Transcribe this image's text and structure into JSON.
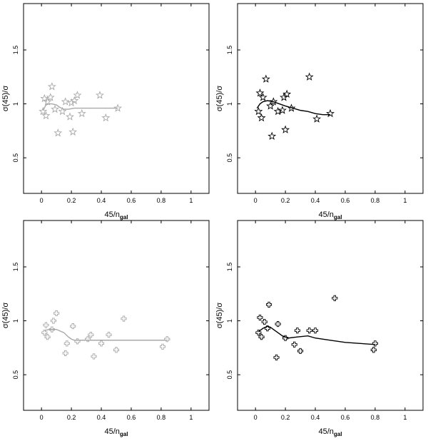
{
  "chart_data": [
    {
      "type": "scatter",
      "panel": "top-left",
      "color": "#a8a8a8",
      "marker": "star",
      "xlabel_main": "45/n",
      "xlabel_sub": "gal",
      "ylabel": "σ(45)/σ",
      "xlim": [
        -0.12,
        1.12
      ],
      "ylim": [
        0.17,
        1.93
      ],
      "xticks": [
        "0",
        "0.2",
        "0.4",
        "0.6",
        "0.8",
        "1"
      ],
      "xtick_values": [
        0,
        0.2,
        0.4,
        0.6,
        0.8,
        1
      ],
      "yticks": [
        "0.5",
        "1",
        "1.5"
      ],
      "ytick_values": [
        0.5,
        1.0,
        1.5
      ],
      "series": [
        {
          "kind": "points",
          "x": [
            0.01,
            0.02,
            0.03,
            0.04,
            0.06,
            0.07,
            0.09,
            0.11,
            0.14,
            0.16,
            0.19,
            0.2,
            0.21,
            0.22,
            0.24,
            0.27,
            0.39,
            0.43,
            0.51
          ],
          "y": [
            0.93,
            1.05,
            0.89,
            1.02,
            1.06,
            1.16,
            0.95,
            0.73,
            0.93,
            1.02,
            0.88,
            1.01,
            0.74,
            1.03,
            1.08,
            0.91,
            1.08,
            0.87,
            0.96
          ]
        },
        {
          "kind": "line",
          "x": [
            0.01,
            0.03,
            0.05,
            0.07,
            0.1,
            0.12,
            0.15,
            0.18,
            0.22,
            0.3,
            0.4,
            0.51
          ],
          "y": [
            0.94,
            0.99,
            1.0,
            1.0,
            0.99,
            0.97,
            0.95,
            0.95,
            0.96,
            0.96,
            0.96,
            0.96
          ]
        }
      ]
    },
    {
      "type": "scatter",
      "panel": "top-right",
      "color": "#000000",
      "marker": "star",
      "xlabel_main": "45/n",
      "xlabel_sub": "gal",
      "ylabel": "σ(45)/σ",
      "xlim": [
        -0.12,
        1.12
      ],
      "ylim": [
        0.17,
        1.93
      ],
      "xticks": [
        "0",
        "0.2",
        "0.4",
        "0.6",
        "0.8",
        "1"
      ],
      "xtick_values": [
        0,
        0.2,
        0.4,
        0.6,
        0.8,
        1
      ],
      "yticks": [
        "0.5",
        "1",
        "1.5"
      ],
      "ytick_values": [
        0.5,
        1.0,
        1.5
      ],
      "series": [
        {
          "kind": "points",
          "x": [
            0.02,
            0.03,
            0.04,
            0.05,
            0.07,
            0.1,
            0.11,
            0.12,
            0.15,
            0.18,
            0.19,
            0.2,
            0.21,
            0.24,
            0.36,
            0.41,
            0.5
          ],
          "y": [
            0.93,
            1.1,
            0.87,
            1.06,
            1.23,
            0.98,
            0.7,
            1.02,
            0.93,
            0.94,
            1.06,
            0.76,
            1.09,
            0.96,
            1.25,
            0.86,
            0.91
          ]
        },
        {
          "kind": "line",
          "x": [
            0.01,
            0.03,
            0.05,
            0.08,
            0.12,
            0.16,
            0.2,
            0.25,
            0.3,
            0.35,
            0.4,
            0.45,
            0.5
          ],
          "y": [
            0.96,
            1.0,
            1.02,
            1.03,
            1.02,
            1.0,
            0.98,
            0.96,
            0.94,
            0.93,
            0.91,
            0.9,
            0.9
          ]
        }
      ]
    },
    {
      "type": "scatter",
      "panel": "bottom-left",
      "color": "#a8a8a8",
      "marker": "cross",
      "xlabel_main": "45/n",
      "xlabel_sub": "gal",
      "ylabel": "σ(45)/σ",
      "xlim": [
        -0.12,
        1.12
      ],
      "ylim": [
        0.17,
        1.93
      ],
      "xticks": [
        "0",
        "0.2",
        "0.4",
        "0.6",
        "0.8",
        "1"
      ],
      "xtick_values": [
        0,
        0.2,
        0.4,
        0.6,
        0.8,
        1
      ],
      "yticks": [
        "0.5",
        "1",
        "1.5"
      ],
      "ytick_values": [
        0.5,
        1.0,
        1.5
      ],
      "series": [
        {
          "kind": "points",
          "x": [
            0.02,
            0.03,
            0.04,
            0.07,
            0.08,
            0.1,
            0.16,
            0.17,
            0.21,
            0.24,
            0.31,
            0.33,
            0.35,
            0.4,
            0.45,
            0.5,
            0.55,
            0.81,
            0.84
          ],
          "y": [
            0.89,
            0.96,
            0.85,
            0.92,
            1.0,
            1.07,
            0.7,
            0.79,
            0.95,
            0.81,
            0.83,
            0.87,
            0.67,
            0.79,
            0.87,
            0.73,
            1.02,
            0.76,
            0.83
          ]
        },
        {
          "kind": "line",
          "x": [
            0.02,
            0.05,
            0.1,
            0.15,
            0.18,
            0.2,
            0.22,
            0.3,
            0.4,
            0.5,
            0.6,
            0.7,
            0.84
          ],
          "y": [
            0.91,
            0.92,
            0.92,
            0.89,
            0.85,
            0.83,
            0.82,
            0.82,
            0.82,
            0.82,
            0.82,
            0.82,
            0.82
          ]
        }
      ]
    },
    {
      "type": "scatter",
      "panel": "bottom-right",
      "color": "#000000",
      "marker": "cross",
      "xlabel_main": "45/n",
      "xlabel_sub": "gal",
      "ylabel": "σ(45)/σ",
      "xlim": [
        -0.12,
        1.12
      ],
      "ylim": [
        0.17,
        1.93
      ],
      "xticks": [
        "0",
        "0.2",
        "0.4",
        "0.6",
        "0.8",
        "1"
      ],
      "xtick_values": [
        0,
        0.2,
        0.4,
        0.6,
        0.8,
        1
      ],
      "yticks": [
        "0.5",
        "1",
        "1.5"
      ],
      "ytick_values": [
        0.5,
        1.0,
        1.5
      ],
      "series": [
        {
          "kind": "points",
          "x": [
            0.02,
            0.03,
            0.04,
            0.06,
            0.08,
            0.09,
            0.14,
            0.15,
            0.2,
            0.26,
            0.28,
            0.3,
            0.36,
            0.4,
            0.53,
            0.79,
            0.8
          ],
          "y": [
            0.89,
            1.03,
            0.85,
            0.99,
            0.93,
            1.15,
            0.66,
            0.97,
            0.84,
            0.78,
            0.91,
            0.72,
            0.91,
            0.91,
            1.21,
            0.73,
            0.79
          ]
        },
        {
          "kind": "line",
          "x": [
            0.02,
            0.05,
            0.08,
            0.1,
            0.14,
            0.18,
            0.22,
            0.28,
            0.35,
            0.4,
            0.5,
            0.6,
            0.7,
            0.8
          ],
          "y": [
            0.9,
            0.93,
            0.95,
            0.94,
            0.9,
            0.86,
            0.84,
            0.85,
            0.86,
            0.84,
            0.82,
            0.8,
            0.79,
            0.78
          ]
        }
      ]
    }
  ]
}
